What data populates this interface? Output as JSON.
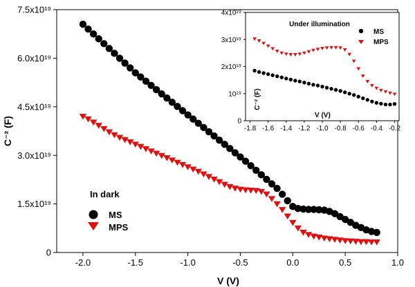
{
  "chart_data": [
    {
      "type": "scatter",
      "xlabel": "V (V)",
      "ylabel": "C⁻² (F)",
      "xlim": [
        -2.25,
        1.0
      ],
      "ylim": [
        0,
        7.5e+19
      ],
      "xticks": [
        -2.0,
        -1.5,
        -1.0,
        -0.5,
        0.0,
        0.5,
        1.0
      ],
      "xtick_labels": [
        "-2.0",
        "-1.5",
        "-1.0",
        "-0.5",
        "0.0",
        "0.5",
        "1.0"
      ],
      "yticks": [
        0,
        1.5e+19,
        3e+19,
        4.5e+19,
        6e+19,
        7.5e+19
      ],
      "ytick_labels": [
        "0",
        "1.5x10¹⁹",
        "3.0x10¹⁹",
        "4.5x10¹⁹",
        "6.0x10¹⁹",
        "7.5x10¹⁹"
      ],
      "legend_title": "In dark",
      "legend_position": "lower-left",
      "series": [
        {
          "name": "MS",
          "marker": "circle",
          "color": "#000000",
          "x": [
            -2.0,
            -1.95,
            -1.9,
            -1.85,
            -1.8,
            -1.75,
            -1.7,
            -1.65,
            -1.6,
            -1.55,
            -1.5,
            -1.45,
            -1.4,
            -1.35,
            -1.3,
            -1.25,
            -1.2,
            -1.15,
            -1.1,
            -1.05,
            -1.0,
            -0.95,
            -0.9,
            -0.85,
            -0.8,
            -0.75,
            -0.7,
            -0.65,
            -0.6,
            -0.55,
            -0.5,
            -0.45,
            -0.4,
            -0.35,
            -0.3,
            -0.25,
            -0.2,
            -0.15,
            -0.1,
            -0.05,
            0.0,
            0.05,
            0.1,
            0.15,
            0.2,
            0.25,
            0.3,
            0.35,
            0.4,
            0.45,
            0.5,
            0.55,
            0.6,
            0.65,
            0.7,
            0.75,
            0.8
          ],
          "y": [
            7.05e+19,
            6.9e+19,
            6.75e+19,
            6.6e+19,
            6.45e+19,
            6.3e+19,
            6.15e+19,
            6e+19,
            5.85e+19,
            5.7e+19,
            5.55e+19,
            5.42e+19,
            5.29e+19,
            5.16e+19,
            5.03e+19,
            4.9e+19,
            4.77e+19,
            4.64e+19,
            4.51e+19,
            4.38e+19,
            4.25e+19,
            4.12e+19,
            3.99e+19,
            3.86e+19,
            3.73e+19,
            3.6e+19,
            3.47e+19,
            3.34e+19,
            3.21e+19,
            3.08e+19,
            2.95e+19,
            2.82e+19,
            2.68e+19,
            2.54e+19,
            2.4e+19,
            2.26e+19,
            2.12e+19,
            1.98e+19,
            1.8e+19,
            1.6e+19,
            1.42e+19,
            1.36e+19,
            1.34e+19,
            1.33e+19,
            1.33e+19,
            1.32e+19,
            1.31e+19,
            1.27e+19,
            1.2e+19,
            1.11e+19,
            1.02e+19,
            9.3e+18,
            8.4e+18,
            7.7e+18,
            7e+18,
            6.5e+18,
            6.2e+18
          ]
        },
        {
          "name": "MPS",
          "marker": "triangle-down",
          "color": "#e01010",
          "x": [
            -2.0,
            -1.95,
            -1.9,
            -1.85,
            -1.8,
            -1.75,
            -1.7,
            -1.65,
            -1.6,
            -1.55,
            -1.5,
            -1.45,
            -1.4,
            -1.35,
            -1.3,
            -1.25,
            -1.2,
            -1.15,
            -1.1,
            -1.05,
            -1.0,
            -0.95,
            -0.9,
            -0.85,
            -0.8,
            -0.75,
            -0.7,
            -0.65,
            -0.6,
            -0.55,
            -0.5,
            -0.45,
            -0.4,
            -0.35,
            -0.3,
            -0.25,
            -0.2,
            -0.15,
            -0.1,
            -0.05,
            0.0,
            0.05,
            0.1,
            0.15,
            0.2,
            0.25,
            0.3,
            0.35,
            0.4,
            0.45,
            0.5,
            0.55,
            0.6,
            0.65,
            0.7,
            0.75,
            0.8
          ],
          "y": [
            4.2e+19,
            4.12e+19,
            4.02e+19,
            3.92e+19,
            3.82e+19,
            3.72e+19,
            3.63e+19,
            3.55e+19,
            3.48e+19,
            3.41e+19,
            3.34e+19,
            3.27e+19,
            3.2e+19,
            3.13e+19,
            3.06e+19,
            2.99e+19,
            2.92e+19,
            2.85e+19,
            2.78e+19,
            2.71e+19,
            2.64e+19,
            2.57e+19,
            2.5e+19,
            2.42e+19,
            2.34e+19,
            2.26e+19,
            2.18e+19,
            2.1e+19,
            2.03e+19,
            1.98e+19,
            1.95e+19,
            1.93e+19,
            1.92e+19,
            1.91e+19,
            1.88e+19,
            1.8e+19,
            1.66e+19,
            1.5e+19,
            1.32e+19,
            1.12e+19,
            9.2e+18,
            7.5e+18,
            6.2e+18,
            5.5e+18,
            5e+18,
            4.7e+18,
            4.4e+18,
            4.2e+18,
            4e+18,
            3.8e+18,
            3.6e+18,
            3.5e+18,
            3.4e+18,
            3.3e+18,
            3.3e+18,
            3.2e+18,
            3.2e+18
          ]
        }
      ]
    },
    {
      "type": "scatter",
      "title": "Under illumination",
      "xlabel": "V (V)",
      "ylabel": "C⁻² (F)",
      "xlim": [
        -1.85,
        -0.15
      ],
      "ylim": [
        0,
        4e+19
      ],
      "xticks": [
        -1.8,
        -1.6,
        -1.4,
        -1.2,
        -1.0,
        -0.8,
        -0.6,
        -0.4,
        -0.2
      ],
      "xtick_labels": [
        "-1.8",
        "-1.6",
        "-1.4",
        "-1.2",
        "-1.0",
        "-0.8",
        "-0.6",
        "-0.4",
        "-0.2"
      ],
      "yticks": [
        0,
        1e+19,
        2e+19,
        3e+19,
        4e+19
      ],
      "ytick_labels": [
        "0",
        "10¹⁹",
        "2x10¹⁹",
        "3x10¹⁹",
        "4x10¹⁹"
      ],
      "legend_position": "top-right",
      "series": [
        {
          "name": "MS",
          "marker": "circle",
          "color": "#000000",
          "x": [
            -1.75,
            -1.7,
            -1.65,
            -1.6,
            -1.55,
            -1.5,
            -1.45,
            -1.4,
            -1.35,
            -1.3,
            -1.25,
            -1.2,
            -1.15,
            -1.1,
            -1.05,
            -1.0,
            -0.95,
            -0.9,
            -0.85,
            -0.8,
            -0.75,
            -0.7,
            -0.65,
            -0.6,
            -0.55,
            -0.5,
            -0.45,
            -0.4,
            -0.35,
            -0.3,
            -0.25,
            -0.2
          ],
          "y": [
            1.85e+19,
            1.8e+19,
            1.76e+19,
            1.72e+19,
            1.68e+19,
            1.64e+19,
            1.6e+19,
            1.56e+19,
            1.52e+19,
            1.48e+19,
            1.45e+19,
            1.41e+19,
            1.37e+19,
            1.33e+19,
            1.3e+19,
            1.26e+19,
            1.22e+19,
            1.18e+19,
            1.14e+19,
            1.1e+19,
            1.05e+19,
            1e+19,
            9.5e+18,
            8.9e+18,
            8.3e+18,
            7.7e+18,
            7.1e+18,
            6.6e+18,
            6.3e+18,
            6e+18,
            6e+18,
            6.2e+18
          ]
        },
        {
          "name": "MPS",
          "marker": "triangle-down",
          "color": "#e01010",
          "x": [
            -1.75,
            -1.7,
            -1.65,
            -1.6,
            -1.55,
            -1.5,
            -1.45,
            -1.4,
            -1.35,
            -1.3,
            -1.25,
            -1.2,
            -1.15,
            -1.1,
            -1.05,
            -1.0,
            -0.95,
            -0.9,
            -0.85,
            -0.8,
            -0.75,
            -0.7,
            -0.65,
            -0.6,
            -0.55,
            -0.5,
            -0.45,
            -0.4,
            -0.35,
            -0.3,
            -0.25,
            -0.2
          ],
          "y": [
            3.02e+19,
            2.95e+19,
            2.86e+19,
            2.76e+19,
            2.66e+19,
            2.57e+19,
            2.5e+19,
            2.46e+19,
            2.44e+19,
            2.44e+19,
            2.46e+19,
            2.5e+19,
            2.55e+19,
            2.6e+19,
            2.64e+19,
            2.67e+19,
            2.69e+19,
            2.7e+19,
            2.7e+19,
            2.69e+19,
            2.62e+19,
            2.45e+19,
            2.2e+19,
            1.92e+19,
            1.65e+19,
            1.45e+19,
            1.3e+19,
            1.2e+19,
            1.12e+19,
            1.07e+19,
            1.02e+19,
            9.8e+18
          ]
        }
      ]
    }
  ]
}
